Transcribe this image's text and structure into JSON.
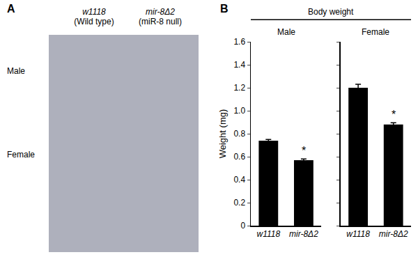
{
  "panel_a": {
    "letter": "A",
    "columns": [
      {
        "genotype": "w1118",
        "note": "(Wild type)"
      },
      {
        "genotype": "mir-8Δ2",
        "note": "(miR-8 null)"
      }
    ],
    "rows": [
      "Male",
      "Female"
    ]
  },
  "chart_data": {
    "type": "bar",
    "letter": "B",
    "title": "Body weight",
    "y_label": "Weight (mg)",
    "color": "#000000",
    "ylim": [
      0,
      1.6
    ],
    "yticks": [
      0,
      0.2,
      0.4,
      0.6,
      0.8,
      {
        "value": 1,
        "label": "1.0"
      },
      1.2,
      1.4,
      1.6
    ],
    "panels": [
      {
        "name": "Male",
        "categories": [
          "w1118",
          "mir-8Δ2"
        ],
        "values": [
          0.74,
          0.57
        ],
        "errors": [
          0.01,
          0.01
        ],
        "annotations": [
          null,
          "*"
        ]
      },
      {
        "name": "Female",
        "categories": [
          "w1118",
          "mir-8Δ2"
        ],
        "values": [
          1.2,
          0.88
        ],
        "errors": [
          0.03,
          0.015
        ],
        "annotations": [
          null,
          "*"
        ]
      }
    ]
  }
}
